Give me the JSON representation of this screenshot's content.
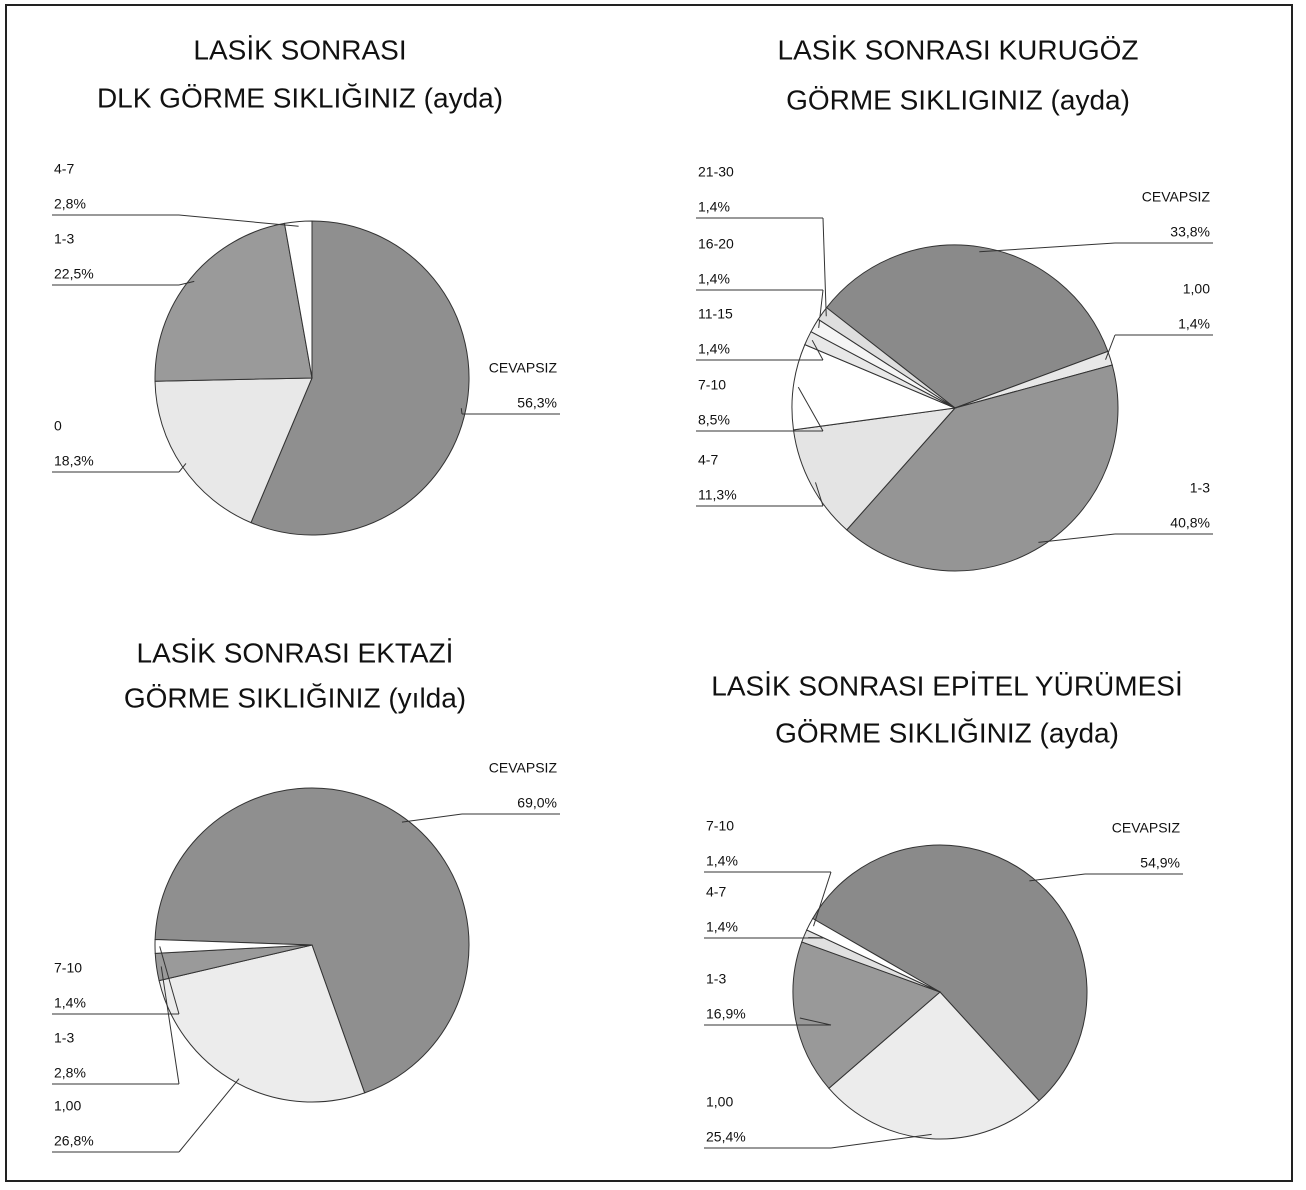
{
  "chart_data": [
    {
      "type": "pie",
      "title": [
        "LASİK SONRASI",
        "DLK GÖRME SIKLIĞINIZ (ayda)"
      ],
      "categories": [
        "CEVAPSIZ",
        "0",
        "1-3",
        "4-7"
      ],
      "values": [
        56.3,
        18.3,
        22.5,
        2.8
      ],
      "value_labels": [
        "56,3%",
        "18,3%",
        "22,5%",
        "2,8%"
      ],
      "colors": [
        "#8f8f8f",
        "#e8e8e8",
        "#9a9a9a",
        "#ffffff"
      ]
    },
    {
      "type": "pie",
      "title": [
        "LASİK SONRASI KURUGÖZ",
        "GÖRME SIKLIGINIZ (ayda)"
      ],
      "categories": [
        "CEVAPSIZ",
        "1,00",
        "1-3",
        "4-7",
        "7-10",
        "11-15",
        "16-20",
        "21-30"
      ],
      "values": [
        33.8,
        1.4,
        40.8,
        11.3,
        8.5,
        1.4,
        1.4,
        1.4
      ],
      "value_labels": [
        "33,8%",
        "1,4%",
        "40,8%",
        "11,3%",
        "8,5%",
        "1,4%",
        "1,4%",
        "1,4%"
      ],
      "colors": [
        "#8a8a8a",
        "#e8e8e8",
        "#959595",
        "#e4e4e4",
        "#ffffff",
        "#e8e8e8",
        "#f5f5f5",
        "#dedede"
      ]
    },
    {
      "type": "pie",
      "title": [
        "LASİK SONRASI EKTAZİ",
        "GÖRME SIKLIĞINIZ (yılda)"
      ],
      "categories": [
        "CEVAPSIZ",
        "1,00",
        "1-3",
        "7-10"
      ],
      "values": [
        69.0,
        26.8,
        2.8,
        1.4
      ],
      "value_labels": [
        "69,0%",
        "26,8%",
        "2,8%",
        "1,4%"
      ],
      "colors": [
        "#8f8f8f",
        "#ececec",
        "#9a9a9a",
        "#ffffff"
      ]
    },
    {
      "type": "pie",
      "title": [
        "LASİK SONRASI EPİTEL YÜRÜMESİ",
        "GÖRME SIKLIĞINIZ (ayda)"
      ],
      "categories": [
        "CEVAPSIZ",
        "1,00",
        "1-3",
        "4-7",
        "7-10"
      ],
      "values": [
        54.9,
        25.4,
        16.9,
        1.4,
        1.4
      ],
      "value_labels": [
        "54,9%",
        "25,4%",
        "16,9%",
        "1,4%",
        "1,4%"
      ],
      "colors": [
        "#8a8a8a",
        "#ececec",
        "#999999",
        "#e0e0e0",
        "#ffffff"
      ]
    }
  ]
}
